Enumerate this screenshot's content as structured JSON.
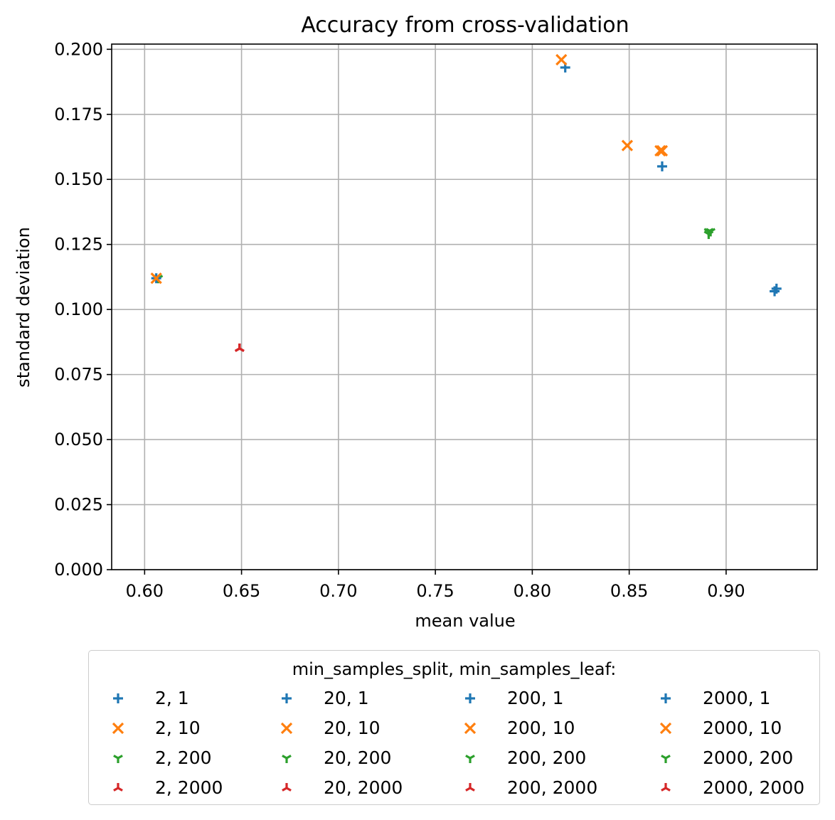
{
  "chart_data": {
    "type": "scatter",
    "title": "Accuracy from cross-validation",
    "xlabel": "mean value",
    "ylabel": "standard deviation",
    "xlim": [
      0.583,
      0.947
    ],
    "ylim": [
      0.0,
      0.202
    ],
    "xticks": [
      "0.60",
      "0.65",
      "0.70",
      "0.75",
      "0.80",
      "0.85",
      "0.90"
    ],
    "yticks": [
      "0.000",
      "0.025",
      "0.050",
      "0.075",
      "0.100",
      "0.125",
      "0.150",
      "0.175",
      "0.200"
    ],
    "grid": true,
    "legend": {
      "title": "min_samples_split, min_samples_leaf:",
      "placement": "below",
      "columns": 4
    },
    "colors": {
      "1": "#1f77b4",
      "10": "#ff7f0e",
      "200": "#2ca02c",
      "2000": "#d62728"
    },
    "markers": {
      "1": "plus",
      "10": "x",
      "200": "tri-down",
      "2000": "tri-up"
    },
    "series": [
      {
        "name": "2, 1",
        "leaf": "1",
        "x": 0.925,
        "y": 0.107
      },
      {
        "name": "2, 10",
        "leaf": "10",
        "x": 0.866,
        "y": 0.161
      },
      {
        "name": "2, 200",
        "leaf": "200",
        "x": 0.891,
        "y": 0.13
      },
      {
        "name": "2, 2000",
        "leaf": "2000",
        "x": 0.649,
        "y": 0.085
      },
      {
        "name": "20, 1",
        "leaf": "1",
        "x": 0.926,
        "y": 0.108
      },
      {
        "name": "20, 10",
        "leaf": "10",
        "x": 0.867,
        "y": 0.161
      },
      {
        "name": "20, 200",
        "leaf": "200",
        "x": 0.892,
        "y": 0.13
      },
      {
        "name": "20, 2000",
        "leaf": "2000",
        "x": 0.649,
        "y": 0.085
      },
      {
        "name": "200, 1",
        "leaf": "1",
        "x": 0.867,
        "y": 0.155
      },
      {
        "name": "200, 10",
        "leaf": "10",
        "x": 0.849,
        "y": 0.163
      },
      {
        "name": "200, 200",
        "leaf": "200",
        "x": 0.891,
        "y": 0.129
      },
      {
        "name": "200, 2000",
        "leaf": "2000",
        "x": 0.649,
        "y": 0.085
      },
      {
        "name": "2000, 1",
        "leaf": "1",
        "x": 0.817,
        "y": 0.193
      },
      {
        "name": "2000, 10",
        "leaf": "10",
        "x": 0.815,
        "y": 0.196
      },
      {
        "name": "2000, 200",
        "leaf": "200",
        "x": 0.607,
        "y": 0.112
      },
      {
        "name": "2000, 2000",
        "leaf": "2000",
        "x": 0.649,
        "y": 0.085
      },
      {
        "name": "2000, 1",
        "leaf": "1",
        "x": 0.606,
        "y": 0.112,
        "legend": false
      },
      {
        "name": "2000, 10",
        "leaf": "10",
        "x": 0.606,
        "y": 0.112,
        "legend": false
      }
    ]
  }
}
